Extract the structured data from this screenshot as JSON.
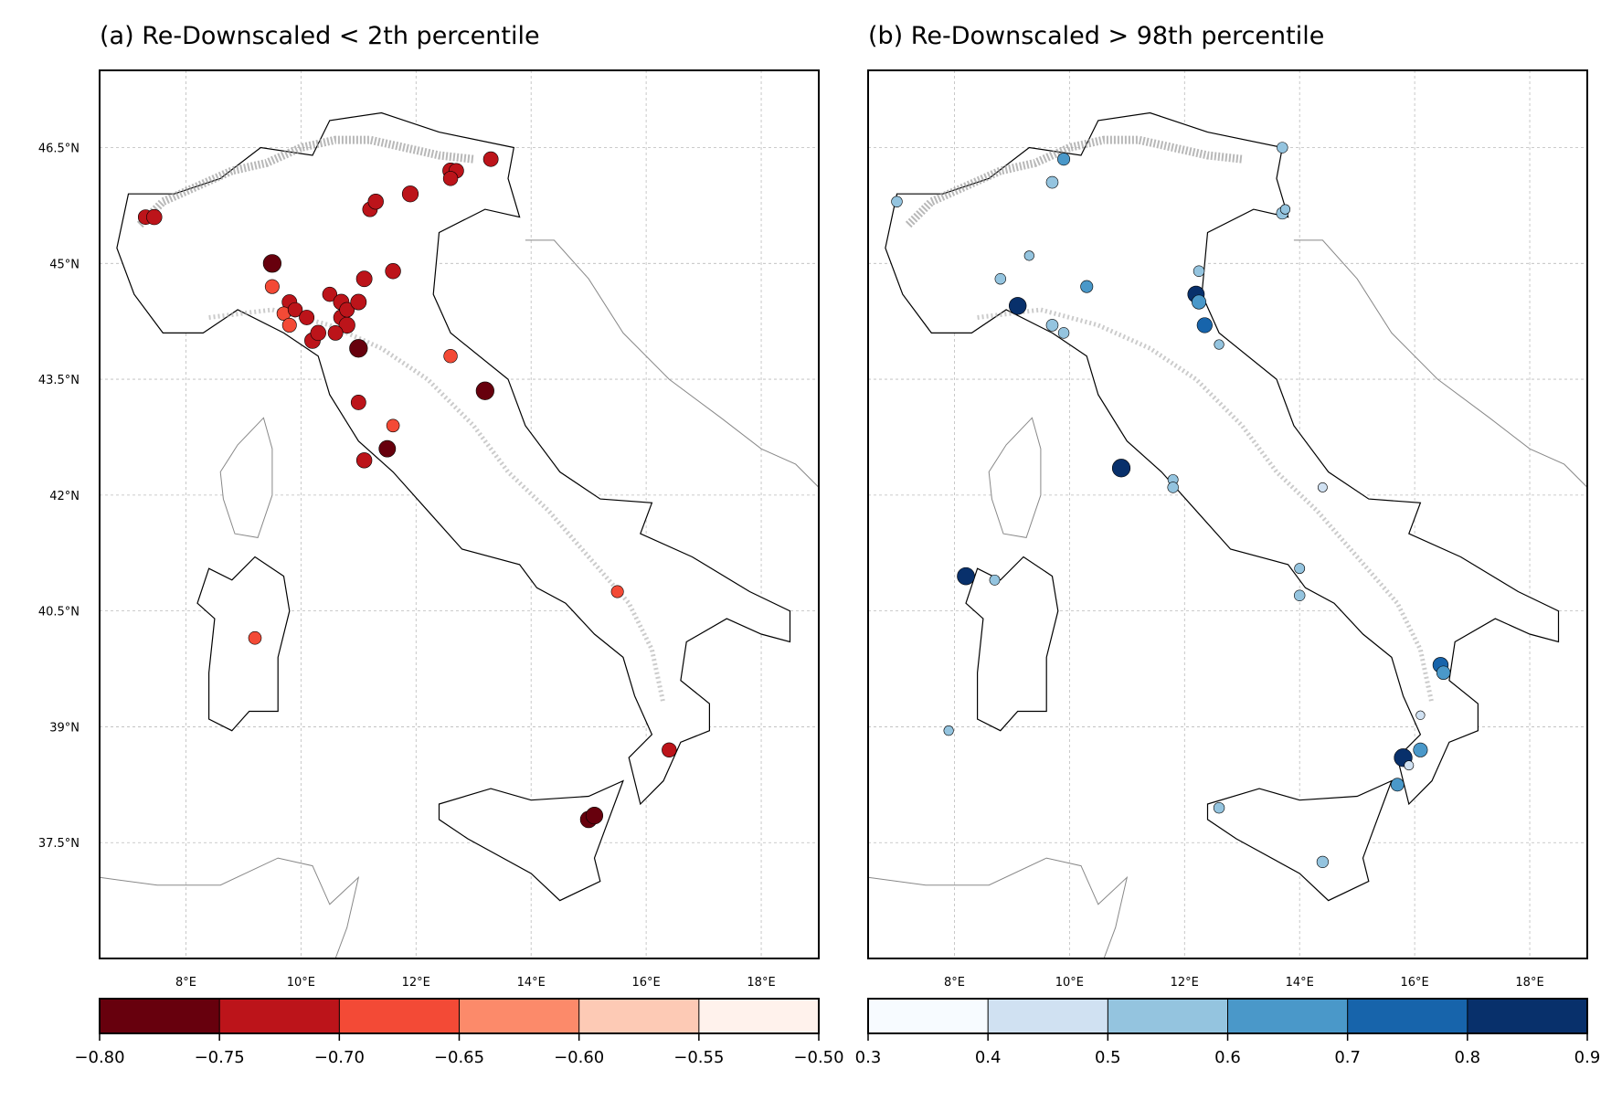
{
  "panels": [
    {
      "title": "(a) Re-Downscaled < 2th percentile",
      "marker_scale": "Reds",
      "colorbar": {
        "ticks": [
          "−0.80",
          "−0.75",
          "−0.70",
          "−0.65",
          "−0.60",
          "−0.55",
          "−0.50"
        ],
        "colors": [
          "#67000d",
          "#bc141a",
          "#f34a36",
          "#fc8a6a",
          "#fdcab5",
          "#fff2ec"
        ]
      },
      "stations": [
        {
          "lon": 7.3,
          "lat": 45.6,
          "v": -0.72
        },
        {
          "lon": 7.45,
          "lat": 45.6,
          "v": -0.73
        },
        {
          "lon": 9.5,
          "lat": 45.0,
          "v": -0.79
        },
        {
          "lon": 9.5,
          "lat": 44.7,
          "v": -0.7
        },
        {
          "lon": 9.8,
          "lat": 44.5,
          "v": -0.72
        },
        {
          "lon": 9.7,
          "lat": 44.35,
          "v": -0.69
        },
        {
          "lon": 9.9,
          "lat": 44.4,
          "v": -0.71
        },
        {
          "lon": 9.8,
          "lat": 44.2,
          "v": -0.7
        },
        {
          "lon": 10.1,
          "lat": 44.3,
          "v": -0.72
        },
        {
          "lon": 10.2,
          "lat": 44.0,
          "v": -0.74
        },
        {
          "lon": 10.3,
          "lat": 44.1,
          "v": -0.73
        },
        {
          "lon": 10.5,
          "lat": 44.6,
          "v": -0.71
        },
        {
          "lon": 10.7,
          "lat": 44.5,
          "v": -0.74
        },
        {
          "lon": 10.7,
          "lat": 44.3,
          "v": -0.73
        },
        {
          "lon": 10.8,
          "lat": 44.2,
          "v": -0.75
        },
        {
          "lon": 10.8,
          "lat": 44.4,
          "v": -0.72
        },
        {
          "lon": 10.6,
          "lat": 44.1,
          "v": -0.72
        },
        {
          "lon": 11.0,
          "lat": 44.5,
          "v": -0.74
        },
        {
          "lon": 11.0,
          "lat": 43.9,
          "v": -0.79
        },
        {
          "lon": 11.1,
          "lat": 44.8,
          "v": -0.74
        },
        {
          "lon": 11.6,
          "lat": 44.9,
          "v": -0.73
        },
        {
          "lon": 11.2,
          "lat": 45.7,
          "v": -0.72
        },
        {
          "lon": 11.3,
          "lat": 45.8,
          "v": -0.73
        },
        {
          "lon": 11.9,
          "lat": 45.9,
          "v": -0.75
        },
        {
          "lon": 12.6,
          "lat": 46.2,
          "v": -0.74
        },
        {
          "lon": 12.7,
          "lat": 46.2,
          "v": -0.72
        },
        {
          "lon": 12.6,
          "lat": 46.1,
          "v": -0.71
        },
        {
          "lon": 13.3,
          "lat": 46.35,
          "v": -0.72
        },
        {
          "lon": 12.6,
          "lat": 43.8,
          "v": -0.69
        },
        {
          "lon": 13.2,
          "lat": 43.35,
          "v": -0.79
        },
        {
          "lon": 11.0,
          "lat": 43.2,
          "v": -0.72
        },
        {
          "lon": 11.6,
          "lat": 42.9,
          "v": -0.67
        },
        {
          "lon": 11.5,
          "lat": 42.6,
          "v": -0.76
        },
        {
          "lon": 11.1,
          "lat": 42.45,
          "v": -0.73
        },
        {
          "lon": 15.5,
          "lat": 40.75,
          "v": -0.66
        },
        {
          "lon": 9.2,
          "lat": 40.15,
          "v": -0.67
        },
        {
          "lon": 16.4,
          "lat": 38.7,
          "v": -0.71
        },
        {
          "lon": 15.0,
          "lat": 37.8,
          "v": -0.76
        },
        {
          "lon": 15.1,
          "lat": 37.85,
          "v": -0.77
        }
      ]
    },
    {
      "title": "(b) Re-Downscaled > 98th percentile",
      "marker_scale": "Blues",
      "colorbar": {
        "ticks": [
          "0.3",
          "0.4",
          "0.5",
          "0.6",
          "0.7",
          "0.8",
          "0.9"
        ],
        "colors": [
          "#f7fbff",
          "#d0e1f2",
          "#94c4df",
          "#4a98c9",
          "#1764ab",
          "#08306b"
        ]
      },
      "stations": [
        {
          "lon": 7.0,
          "lat": 45.8,
          "v": 0.55
        },
        {
          "lon": 9.9,
          "lat": 46.35,
          "v": 0.62
        },
        {
          "lon": 9.7,
          "lat": 46.05,
          "v": 0.6
        },
        {
          "lon": 13.7,
          "lat": 46.5,
          "v": 0.55
        },
        {
          "lon": 13.7,
          "lat": 45.65,
          "v": 0.6
        },
        {
          "lon": 13.75,
          "lat": 45.7,
          "v": 0.5
        },
        {
          "lon": 8.8,
          "lat": 44.8,
          "v": 0.55
        },
        {
          "lon": 9.3,
          "lat": 45.1,
          "v": 0.5
        },
        {
          "lon": 9.1,
          "lat": 44.45,
          "v": 0.85
        },
        {
          "lon": 9.7,
          "lat": 44.2,
          "v": 0.6
        },
        {
          "lon": 9.9,
          "lat": 44.1,
          "v": 0.55
        },
        {
          "lon": 10.3,
          "lat": 44.7,
          "v": 0.62
        },
        {
          "lon": 12.25,
          "lat": 44.9,
          "v": 0.55
        },
        {
          "lon": 12.2,
          "lat": 44.6,
          "v": 0.82
        },
        {
          "lon": 12.25,
          "lat": 44.5,
          "v": 0.7
        },
        {
          "lon": 12.35,
          "lat": 44.2,
          "v": 0.75
        },
        {
          "lon": 12.6,
          "lat": 43.95,
          "v": 0.5
        },
        {
          "lon": 10.9,
          "lat": 42.35,
          "v": 0.88
        },
        {
          "lon": 11.8,
          "lat": 42.2,
          "v": 0.52
        },
        {
          "lon": 11.8,
          "lat": 42.1,
          "v": 0.55
        },
        {
          "lon": 14.4,
          "lat": 42.1,
          "v": 0.48
        },
        {
          "lon": 8.2,
          "lat": 40.95,
          "v": 0.86
        },
        {
          "lon": 8.7,
          "lat": 40.9,
          "v": 0.52
        },
        {
          "lon": 14.0,
          "lat": 41.05,
          "v": 0.52
        },
        {
          "lon": 14.0,
          "lat": 40.7,
          "v": 0.55
        },
        {
          "lon": 16.45,
          "lat": 39.8,
          "v": 0.76
        },
        {
          "lon": 16.5,
          "lat": 39.7,
          "v": 0.68
        },
        {
          "lon": 16.1,
          "lat": 39.15,
          "v": 0.45
        },
        {
          "lon": 7.9,
          "lat": 38.95,
          "v": 0.5
        },
        {
          "lon": 15.8,
          "lat": 38.6,
          "v": 0.88
        },
        {
          "lon": 16.1,
          "lat": 38.7,
          "v": 0.7
        },
        {
          "lon": 15.9,
          "lat": 38.5,
          "v": 0.48
        },
        {
          "lon": 15.7,
          "lat": 38.25,
          "v": 0.65
        },
        {
          "lon": 12.6,
          "lat": 37.95,
          "v": 0.55
        },
        {
          "lon": 14.4,
          "lat": 37.25,
          "v": 0.58
        }
      ]
    }
  ],
  "axes": {
    "lon_ticks": [
      "8°E",
      "10°E",
      "12°E",
      "14°E",
      "16°E",
      "18°E"
    ],
    "lat_ticks": [
      "46.5°N",
      "45°N",
      "43.5°N",
      "42°N",
      "40.5°N",
      "39°N",
      "37.5°N"
    ]
  }
}
